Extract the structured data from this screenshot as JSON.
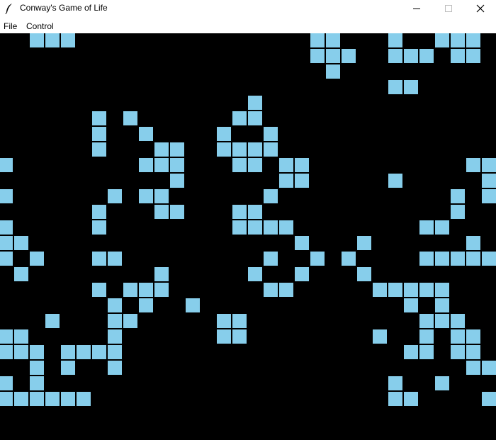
{
  "window": {
    "title": "Conway's Game of Life",
    "icon": "feather-icon",
    "controls": [
      "minimize-icon",
      "maximize-icon",
      "close-icon"
    ]
  },
  "menu": {
    "file": "File",
    "control": "Control"
  },
  "colors": {
    "alive": "#87ceeb",
    "dead": "#000000"
  },
  "grid": {
    "live_cells": [
      [
        0,
        2
      ],
      [
        0,
        3
      ],
      [
        0,
        4
      ],
      [
        0,
        20
      ],
      [
        0,
        21
      ],
      [
        0,
        25
      ],
      [
        0,
        28
      ],
      [
        0,
        29
      ],
      [
        0,
        30
      ],
      [
        1,
        20
      ],
      [
        1,
        21
      ],
      [
        1,
        22
      ],
      [
        1,
        25
      ],
      [
        1,
        26
      ],
      [
        1,
        27
      ],
      [
        1,
        29
      ],
      [
        1,
        30
      ],
      [
        2,
        21
      ],
      [
        3,
        25
      ],
      [
        3,
        26
      ],
      [
        4,
        16
      ],
      [
        5,
        6
      ],
      [
        5,
        8
      ],
      [
        5,
        15
      ],
      [
        5,
        16
      ],
      [
        6,
        6
      ],
      [
        6,
        9
      ],
      [
        6,
        14
      ],
      [
        6,
        17
      ],
      [
        7,
        6
      ],
      [
        7,
        10
      ],
      [
        7,
        11
      ],
      [
        7,
        14
      ],
      [
        7,
        15
      ],
      [
        7,
        16
      ],
      [
        7,
        17
      ],
      [
        8,
        0
      ],
      [
        8,
        9
      ],
      [
        8,
        10
      ],
      [
        8,
        11
      ],
      [
        8,
        15
      ],
      [
        8,
        16
      ],
      [
        8,
        18
      ],
      [
        8,
        19
      ],
      [
        8,
        30
      ],
      [
        8,
        31
      ],
      [
        9,
        11
      ],
      [
        9,
        18
      ],
      [
        9,
        19
      ],
      [
        9,
        25
      ],
      [
        9,
        31
      ],
      [
        10,
        0
      ],
      [
        10,
        7
      ],
      [
        10,
        9
      ],
      [
        10,
        10
      ],
      [
        10,
        17
      ],
      [
        10,
        29
      ],
      [
        10,
        31
      ],
      [
        11,
        6
      ],
      [
        11,
        10
      ],
      [
        11,
        11
      ],
      [
        11,
        15
      ],
      [
        11,
        16
      ],
      [
        11,
        29
      ],
      [
        12,
        0
      ],
      [
        12,
        6
      ],
      [
        12,
        15
      ],
      [
        12,
        16
      ],
      [
        12,
        17
      ],
      [
        12,
        18
      ],
      [
        12,
        27
      ],
      [
        12,
        28
      ],
      [
        13,
        0
      ],
      [
        13,
        1
      ],
      [
        13,
        19
      ],
      [
        13,
        23
      ],
      [
        13,
        30
      ],
      [
        14,
        0
      ],
      [
        14,
        2
      ],
      [
        14,
        6
      ],
      [
        14,
        7
      ],
      [
        14,
        17
      ],
      [
        14,
        20
      ],
      [
        14,
        22
      ],
      [
        14,
        27
      ],
      [
        14,
        28
      ],
      [
        14,
        29
      ],
      [
        14,
        30
      ],
      [
        14,
        31
      ],
      [
        15,
        1
      ],
      [
        15,
        10
      ],
      [
        15,
        16
      ],
      [
        15,
        19
      ],
      [
        15,
        23
      ],
      [
        16,
        6
      ],
      [
        16,
        8
      ],
      [
        16,
        9
      ],
      [
        16,
        10
      ],
      [
        16,
        17
      ],
      [
        16,
        18
      ],
      [
        16,
        24
      ],
      [
        16,
        25
      ],
      [
        16,
        26
      ],
      [
        16,
        27
      ],
      [
        16,
        28
      ],
      [
        17,
        7
      ],
      [
        17,
        9
      ],
      [
        17,
        12
      ],
      [
        17,
        26
      ],
      [
        17,
        28
      ],
      [
        18,
        3
      ],
      [
        18,
        7
      ],
      [
        18,
        8
      ],
      [
        18,
        14
      ],
      [
        18,
        15
      ],
      [
        18,
        27
      ],
      [
        18,
        28
      ],
      [
        18,
        29
      ],
      [
        19,
        0
      ],
      [
        19,
        1
      ],
      [
        19,
        7
      ],
      [
        19,
        14
      ],
      [
        19,
        15
      ],
      [
        19,
        24
      ],
      [
        19,
        27
      ],
      [
        19,
        29
      ],
      [
        19,
        30
      ],
      [
        20,
        0
      ],
      [
        20,
        1
      ],
      [
        20,
        2
      ],
      [
        20,
        4
      ],
      [
        20,
        5
      ],
      [
        20,
        6
      ],
      [
        20,
        7
      ],
      [
        20,
        26
      ],
      [
        20,
        27
      ],
      [
        20,
        29
      ],
      [
        20,
        30
      ],
      [
        21,
        2
      ],
      [
        21,
        4
      ],
      [
        21,
        7
      ],
      [
        21,
        30
      ],
      [
        21,
        31
      ],
      [
        22,
        0
      ],
      [
        22,
        2
      ],
      [
        22,
        25
      ],
      [
        22,
        28
      ],
      [
        23,
        0
      ],
      [
        23,
        1
      ],
      [
        23,
        2
      ],
      [
        23,
        3
      ],
      [
        23,
        4
      ],
      [
        23,
        5
      ],
      [
        23,
        25
      ],
      [
        23,
        26
      ],
      [
        23,
        31
      ]
    ]
  }
}
